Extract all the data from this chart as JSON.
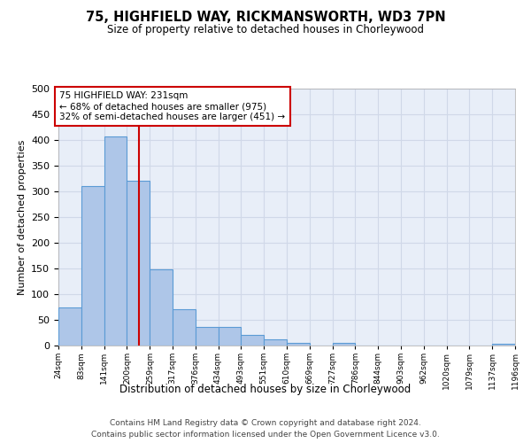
{
  "title": "75, HIGHFIELD WAY, RICKMANSWORTH, WD3 7PN",
  "subtitle": "Size of property relative to detached houses in Chorleywood",
  "xlabel": "Distribution of detached houses by size in Chorleywood",
  "ylabel": "Number of detached properties",
  "bin_edges": [
    24,
    83,
    141,
    200,
    259,
    317,
    376,
    434,
    493,
    551,
    610,
    669,
    727,
    786,
    844,
    903,
    962,
    1020,
    1079,
    1137,
    1196
  ],
  "bin_counts": [
    75,
    311,
    407,
    320,
    148,
    70,
    36,
    36,
    20,
    12,
    6,
    0,
    5,
    0,
    0,
    0,
    0,
    0,
    0,
    3
  ],
  "bar_color": "#aec6e8",
  "bar_edge_color": "#5b9bd5",
  "property_size": 231,
  "vline_color": "#cc0000",
  "annotation_text": "75 HIGHFIELD WAY: 231sqm\n← 68% of detached houses are smaller (975)\n32% of semi-detached houses are larger (451) →",
  "annotation_box_color": "#ffffff",
  "annotation_box_edge_color": "#cc0000",
  "ylim": [
    0,
    500
  ],
  "yticks": [
    0,
    50,
    100,
    150,
    200,
    250,
    300,
    350,
    400,
    450,
    500
  ],
  "grid_color": "#d0d8e8",
  "background_color": "#e8eef8",
  "footer_line1": "Contains HM Land Registry data © Crown copyright and database right 2024.",
  "footer_line2": "Contains public sector information licensed under the Open Government Licence v3.0.",
  "tick_labels": [
    "24sqm",
    "83sqm",
    "141sqm",
    "200sqm",
    "259sqm",
    "317sqm",
    "376sqm",
    "434sqm",
    "493sqm",
    "551sqm",
    "610sqm",
    "669sqm",
    "727sqm",
    "786sqm",
    "844sqm",
    "903sqm",
    "962sqm",
    "1020sqm",
    "1079sqm",
    "1137sqm",
    "1196sqm"
  ]
}
